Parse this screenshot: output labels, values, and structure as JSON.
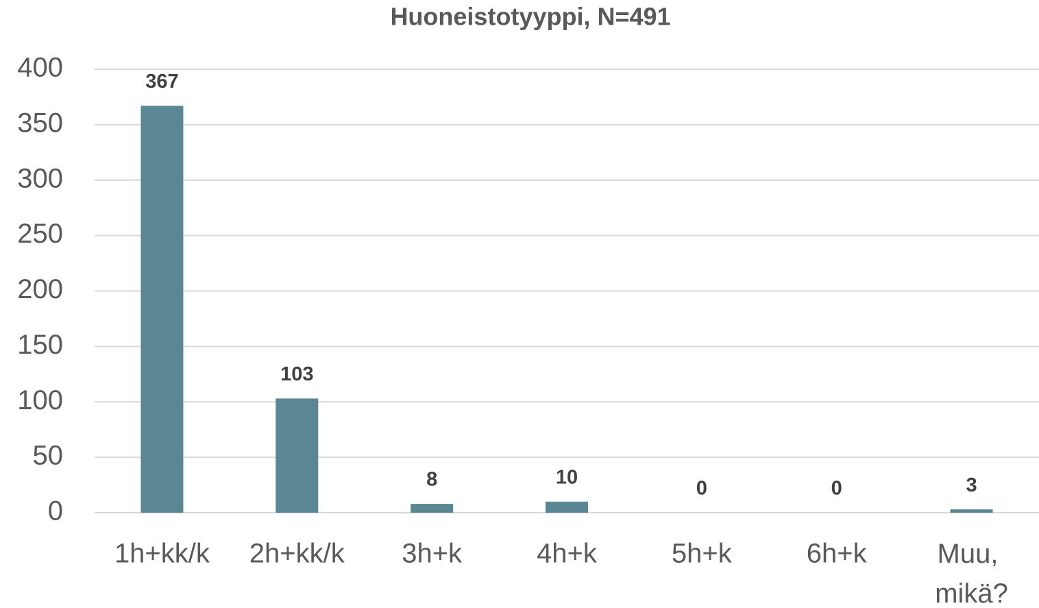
{
  "chart_data": {
    "type": "bar",
    "title": "Huoneistotyyppi, N=491",
    "categories": [
      "1h+kk/k",
      "2h+kk/k",
      "3h+k",
      "4h+k",
      "5h+k",
      "6h+k",
      "Muu, mikä?"
    ],
    "values": [
      367,
      103,
      8,
      10,
      0,
      0,
      3
    ],
    "color": "#5b8693",
    "ylim": [
      0,
      400
    ],
    "yticks": [
      0,
      50,
      100,
      150,
      200,
      250,
      300,
      350,
      400
    ],
    "grid": true
  }
}
